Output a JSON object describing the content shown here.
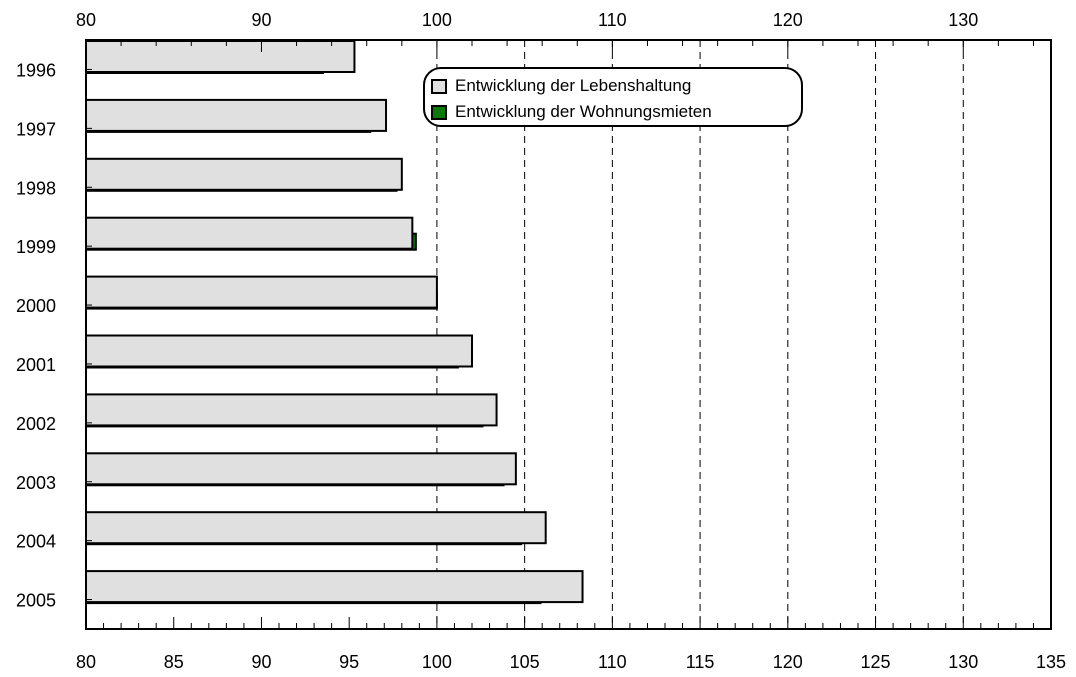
{
  "chart_data": {
    "type": "bar",
    "orientation": "horizontal",
    "categories": [
      "1996",
      "1997",
      "1998",
      "1999",
      "2000",
      "2001",
      "2002",
      "2003",
      "2004",
      "2005"
    ],
    "series": [
      {
        "name": "Entwicklung der Lebenshaltung",
        "color": "#e0e0e0",
        "values": [
          95.3,
          97.1,
          98.0,
          98.6,
          100.0,
          102.0,
          103.4,
          104.5,
          106.2,
          108.3
        ]
      },
      {
        "name": "Entwicklung der Wohnungsmieten",
        "color": "#0b7a0b",
        "values": [
          93.5,
          96.2,
          97.7,
          98.8,
          100.0,
          101.2,
          102.6,
          103.8,
          104.8,
          105.9
        ]
      }
    ],
    "xlim": [
      80,
      135
    ],
    "x_ticks_bottom": [
      "80",
      "85",
      "90",
      "95",
      "100",
      "105",
      "110",
      "115",
      "120",
      "125",
      "130",
      "135"
    ],
    "x_ticks_top": [
      "80",
      "90",
      "100",
      "110",
      "120",
      "130"
    ],
    "grid": "vertical dashed at 100–130",
    "legend_position": "top"
  }
}
